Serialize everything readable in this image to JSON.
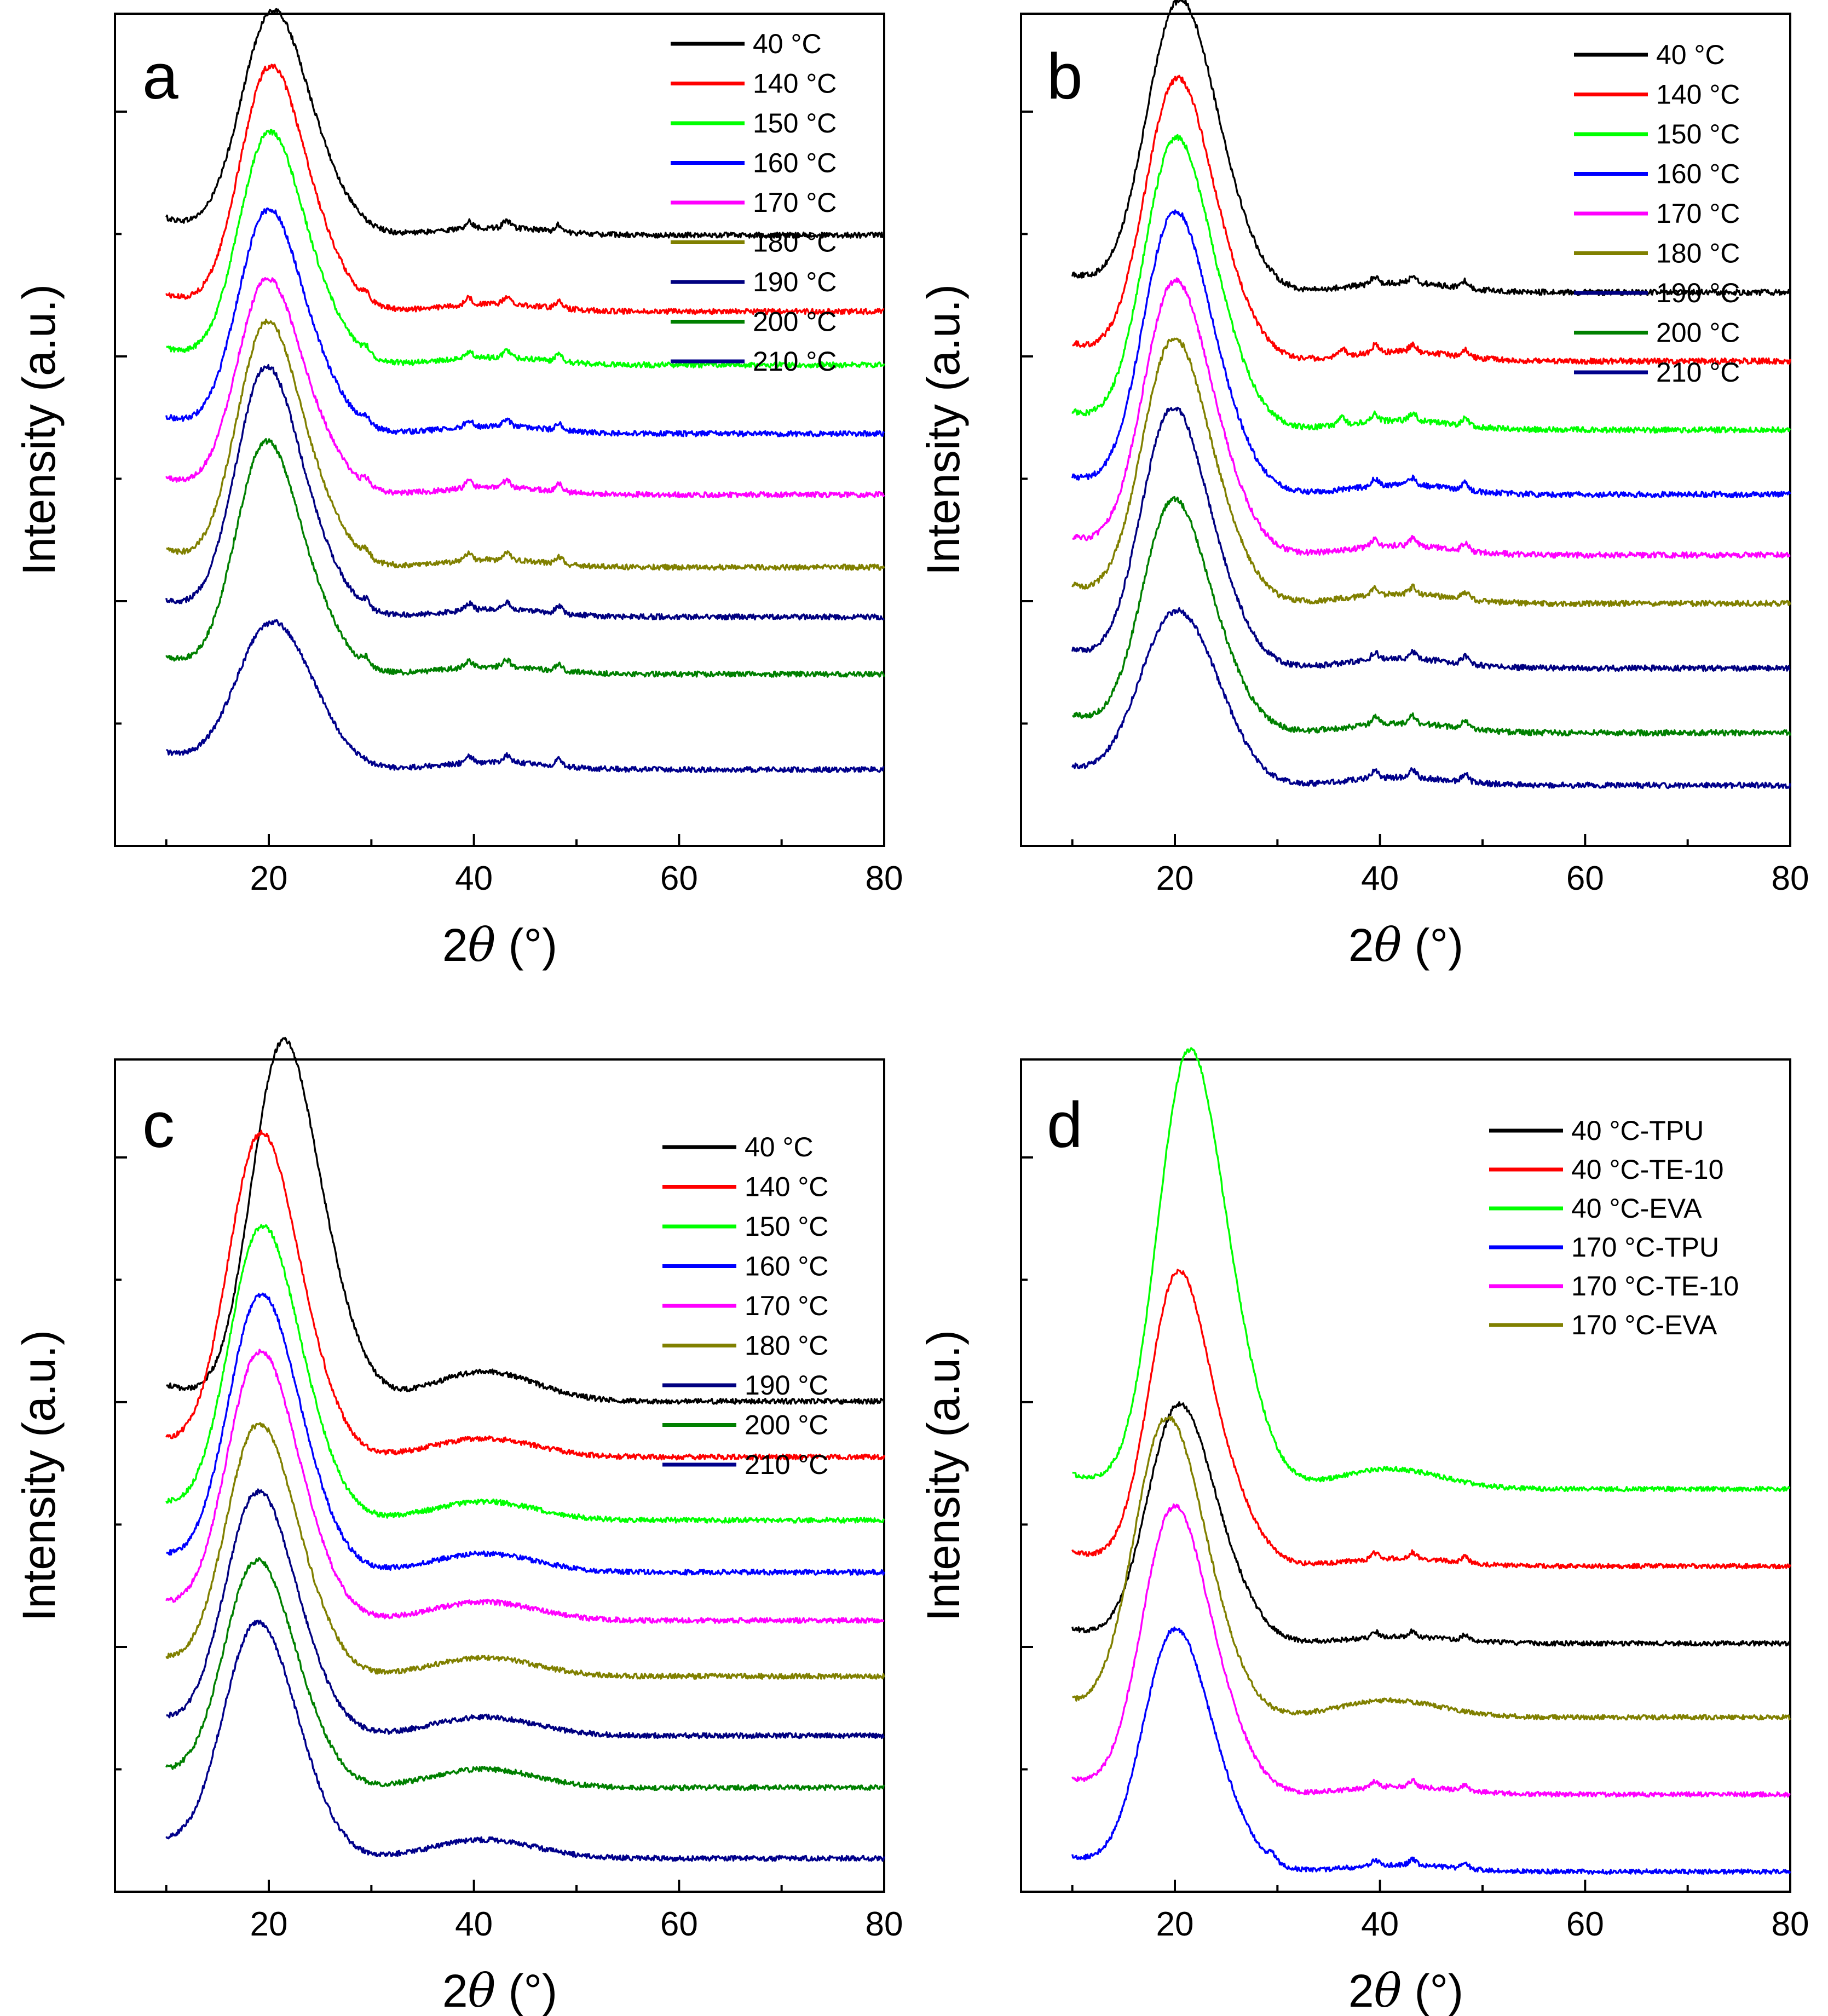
{
  "figure_title": "",
  "chart_data": [
    {
      "panel": "a",
      "type": "line",
      "xlabel_prefix": "2",
      "xlabel_symbol": "θ",
      "xlabel_suffix": " (°)",
      "ylabel": "Intensity (a.u.)",
      "xlim": [
        5,
        80
      ],
      "xticks": [
        20,
        40,
        60,
        80
      ],
      "yticks_labeled": false,
      "grid": false,
      "legend_position": "top-right",
      "x_range": [
        10,
        80
      ],
      "series": [
        {
          "name": "40 °C",
          "color": "#000000",
          "offset": 8.0,
          "peak_x": 20.0,
          "peak_height": 2.6,
          "peak_width": 2.9,
          "amorph_x": 42,
          "amorph_height": 0.1,
          "bragg": [
            39.5,
            43.2,
            48.3
          ]
        },
        {
          "name": "140 °C",
          "color": "#ff0000",
          "offset": 7.0,
          "peak_x": 19.8,
          "peak_height": 2.85,
          "peak_width": 2.8,
          "amorph_x": 42,
          "amorph_height": 0.1,
          "bragg": [
            29.5,
            39.5,
            43.2,
            48.3
          ]
        },
        {
          "name": "150 °C",
          "color": "#00ff00",
          "offset": 6.3,
          "peak_x": 19.7,
          "peak_height": 2.7,
          "peak_width": 2.8,
          "amorph_x": 42,
          "amorph_height": 0.1,
          "bragg": [
            29.5,
            39.5,
            43.2,
            48.3
          ]
        },
        {
          "name": "160 °C",
          "color": "#0000ff",
          "offset": 5.4,
          "peak_x": 19.6,
          "peak_height": 2.6,
          "peak_width": 2.8,
          "amorph_x": 42,
          "amorph_height": 0.1,
          "bragg": [
            29.5,
            39.5,
            43.2,
            48.3
          ]
        },
        {
          "name": "170 °C",
          "color": "#ff00ff",
          "offset": 4.6,
          "peak_x": 19.5,
          "peak_height": 2.5,
          "peak_width": 2.8,
          "amorph_x": 42,
          "amorph_height": 0.1,
          "bragg": [
            29.5,
            39.5,
            43.2,
            48.3
          ]
        },
        {
          "name": "180 °C",
          "color": "#808000",
          "offset": 3.65,
          "peak_x": 19.5,
          "peak_height": 2.85,
          "peak_width": 2.8,
          "amorph_x": 42,
          "amorph_height": 0.1,
          "bragg": [
            29.5,
            39.5,
            43.2,
            48.3
          ]
        },
        {
          "name": "190 °C",
          "color": "#000080",
          "offset": 3.0,
          "peak_x": 19.4,
          "peak_height": 2.9,
          "peak_width": 2.8,
          "amorph_x": 42,
          "amorph_height": 0.1,
          "bragg": [
            29.5,
            39.5,
            43.2,
            48.3
          ]
        },
        {
          "name": "200 °C",
          "color": "#008000",
          "offset": 2.25,
          "peak_x": 19.4,
          "peak_height": 2.7,
          "peak_width": 2.8,
          "amorph_x": 42,
          "amorph_height": 0.1,
          "bragg": [
            29.5,
            39.5,
            43.2,
            48.3
          ]
        },
        {
          "name": "210 °C",
          "color": "#00008b",
          "offset": 1.0,
          "peak_x": 19.8,
          "peak_height": 1.7,
          "peak_width": 3.2,
          "amorph_x": 42,
          "amorph_height": 0.1,
          "bragg": [
            39.5,
            43.2,
            48.3
          ]
        }
      ]
    },
    {
      "panel": "b",
      "type": "line",
      "xlabel_prefix": "2",
      "xlabel_symbol": "θ",
      "xlabel_suffix": " (°)",
      "ylabel": "Intensity (a.u.)",
      "xlim": [
        5,
        80
      ],
      "xticks": [
        20,
        40,
        60,
        80
      ],
      "yticks_labeled": false,
      "grid": false,
      "legend_position": "top-right",
      "x_range": [
        10,
        80
      ],
      "series": [
        {
          "name": "40 °C",
          "color": "#000000",
          "offset": 8.35,
          "peak_x": 20.0,
          "peak_height": 3.2,
          "peak_width": 3.0,
          "amorph_x": 42,
          "amorph_height": 0.12,
          "bragg": [
            39.5,
            43.2,
            48.3
          ]
        },
        {
          "name": "140 °C",
          "color": "#ff0000",
          "offset": 7.5,
          "peak_x": 19.8,
          "peak_height": 3.1,
          "peak_width": 2.9,
          "amorph_x": 42,
          "amorph_height": 0.12,
          "bragg": [
            36.3,
            39.5,
            43.2,
            48.3
          ]
        },
        {
          "name": "150 °C",
          "color": "#00ff00",
          "offset": 6.65,
          "peak_x": 19.7,
          "peak_height": 3.2,
          "peak_width": 2.9,
          "amorph_x": 42,
          "amorph_height": 0.12,
          "bragg": [
            36.3,
            39.5,
            43.2,
            48.3
          ]
        },
        {
          "name": "160 °C",
          "color": "#0000ff",
          "offset": 5.85,
          "peak_x": 19.6,
          "peak_height": 3.1,
          "peak_width": 2.9,
          "amorph_x": 42,
          "amorph_height": 0.12,
          "bragg": [
            39.5,
            43.2,
            48.3
          ]
        },
        {
          "name": "170 °C",
          "color": "#ff00ff",
          "offset": 5.1,
          "peak_x": 19.6,
          "peak_height": 3.0,
          "peak_width": 2.9,
          "amorph_x": 42,
          "amorph_height": 0.12,
          "bragg": [
            39.5,
            43.2,
            48.3
          ]
        },
        {
          "name": "180 °C",
          "color": "#808000",
          "offset": 4.5,
          "peak_x": 19.5,
          "peak_height": 2.9,
          "peak_width": 2.9,
          "amorph_x": 42,
          "amorph_height": 0.12,
          "bragg": [
            39.5,
            43.2,
            48.3
          ]
        },
        {
          "name": "190 °C",
          "color": "#000080",
          "offset": 3.7,
          "peak_x": 19.4,
          "peak_height": 2.85,
          "peak_width": 2.9,
          "amorph_x": 42,
          "amorph_height": 0.12,
          "bragg": [
            39.5,
            43.2,
            48.3
          ]
        },
        {
          "name": "200 °C",
          "color": "#008000",
          "offset": 2.9,
          "peak_x": 19.5,
          "peak_height": 2.55,
          "peak_width": 2.9,
          "amorph_x": 42,
          "amorph_height": 0.12,
          "bragg": [
            39.5,
            43.2,
            48.3
          ]
        },
        {
          "name": "210 °C",
          "color": "#00008b",
          "offset": 2.25,
          "peak_x": 19.6,
          "peak_height": 1.9,
          "peak_width": 3.3,
          "amorph_x": 42,
          "amorph_height": 0.1,
          "bragg": [
            39.5,
            43.2,
            48.3
          ]
        }
      ]
    },
    {
      "panel": "c",
      "type": "line",
      "xlabel_prefix": "2",
      "xlabel_symbol": "θ",
      "xlabel_suffix": " (°)",
      "ylabel": "Intensity (a.u.)",
      "xlim": [
        5,
        80
      ],
      "xticks": [
        20,
        40,
        60,
        80
      ],
      "yticks_labeled": false,
      "grid": false,
      "legend_position": "top-right",
      "x_range": [
        10,
        80
      ],
      "series": [
        {
          "name": "40 °C",
          "color": "#000000",
          "offset": 6.6,
          "peak_x": 21.0,
          "peak_height": 4.3,
          "peak_width": 2.9,
          "amorph_x": 41,
          "amorph_height": 0.4,
          "bragg": []
        },
        {
          "name": "140 °C",
          "color": "#ff0000",
          "offset": 5.85,
          "peak_x": 18.8,
          "peak_height": 3.85,
          "peak_width": 3.0,
          "amorph_x": 41,
          "amorph_height": 0.25,
          "bragg": []
        },
        {
          "name": "150 °C",
          "color": "#00ff00",
          "offset": 5.0,
          "peak_x": 18.9,
          "peak_height": 3.5,
          "peak_width": 3.0,
          "amorph_x": 41,
          "amorph_height": 0.25,
          "bragg": []
        },
        {
          "name": "160 °C",
          "color": "#0000ff",
          "offset": 4.3,
          "peak_x": 18.8,
          "peak_height": 3.3,
          "peak_width": 3.0,
          "amorph_x": 41,
          "amorph_height": 0.25,
          "bragg": []
        },
        {
          "name": "170 °C",
          "color": "#ff00ff",
          "offset": 3.65,
          "peak_x": 18.7,
          "peak_height": 3.2,
          "peak_width": 3.0,
          "amorph_x": 41,
          "amorph_height": 0.25,
          "bragg": []
        },
        {
          "name": "180 °C",
          "color": "#808000",
          "offset": 2.9,
          "peak_x": 18.6,
          "peak_height": 3.0,
          "peak_width": 3.0,
          "amorph_x": 41,
          "amorph_height": 0.25,
          "bragg": []
        },
        {
          "name": "190 °C",
          "color": "#000080",
          "offset": 2.1,
          "peak_x": 18.5,
          "peak_height": 2.9,
          "peak_width": 3.0,
          "amorph_x": 41,
          "amorph_height": 0.25,
          "bragg": []
        },
        {
          "name": "200 °C",
          "color": "#008000",
          "offset": 1.4,
          "peak_x": 18.4,
          "peak_height": 2.7,
          "peak_width": 3.0,
          "amorph_x": 41,
          "amorph_height": 0.25,
          "bragg": []
        },
        {
          "name": "210 °C",
          "color": "#00008b",
          "offset": 0.45,
          "peak_x": 18.4,
          "peak_height": 2.8,
          "peak_width": 3.1,
          "amorph_x": 41,
          "amorph_height": 0.25,
          "bragg": []
        }
      ]
    },
    {
      "panel": "d",
      "type": "line",
      "xlabel_prefix": "2",
      "xlabel_symbol": "θ",
      "xlabel_suffix": " (°)",
      "ylabel": "Intensity (a.u.)",
      "xlim": [
        5,
        80
      ],
      "xticks": [
        20,
        40,
        60,
        80
      ],
      "yticks_labeled": false,
      "grid": false,
      "legend_position": "top-right",
      "x_range": [
        10,
        80
      ],
      "series": [
        {
          "name": "40 °C-TPU",
          "color": "#000000",
          "offset": 3.7,
          "peak_x": 20.0,
          "peak_height": 3.15,
          "peak_width": 2.9,
          "amorph_x": 42,
          "amorph_height": 0.1,
          "bragg": [
            39.5,
            43.2,
            48.3
          ]
        },
        {
          "name": "40 °C-TE-10",
          "color": "#ff0000",
          "offset": 4.85,
          "peak_x": 20.0,
          "peak_height": 3.9,
          "peak_width": 2.7,
          "amorph_x": 42,
          "amorph_height": 0.12,
          "bragg": [
            39.5,
            43.2,
            48.3
          ]
        },
        {
          "name": "40 °C-EVA",
          "color": "#00ff00",
          "offset": 6.0,
          "peak_x": 21.0,
          "peak_height": 5.8,
          "peak_width": 2.9,
          "amorph_x": 41,
          "amorph_height": 0.3,
          "bragg": []
        },
        {
          "name": "170 °C-TPU",
          "color": "#0000ff",
          "offset": 0.3,
          "peak_x": 19.6,
          "peak_height": 3.2,
          "peak_width": 2.9,
          "amorph_x": 42,
          "amorph_height": 0.1,
          "bragg": [
            29.5,
            39.5,
            43.2,
            48.3
          ]
        },
        {
          "name": "170 °C-TE-10",
          "color": "#ff00ff",
          "offset": 1.45,
          "peak_x": 19.5,
          "peak_height": 3.8,
          "peak_width": 2.9,
          "amorph_x": 42,
          "amorph_height": 0.12,
          "bragg": [
            39.5,
            43.2,
            48.3
          ]
        },
        {
          "name": "170 °C-EVA",
          "color": "#808000",
          "offset": 2.6,
          "peak_x": 18.8,
          "peak_height": 3.95,
          "peak_width": 3.0,
          "amorph_x": 41,
          "amorph_height": 0.25,
          "bragg": []
        }
      ]
    }
  ]
}
